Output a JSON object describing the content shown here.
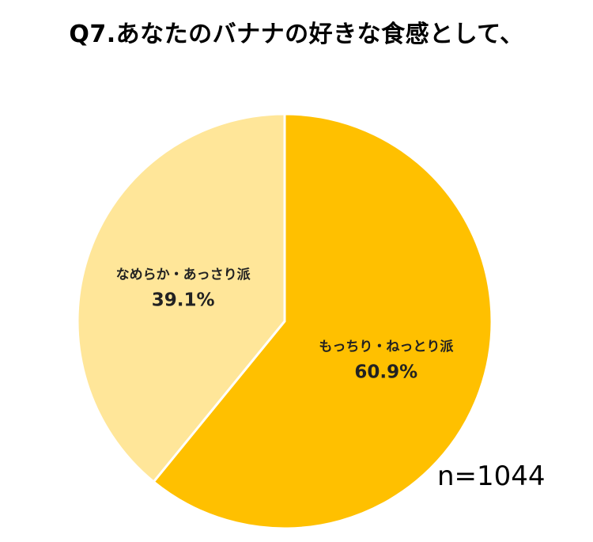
{
  "title": "Q7.あなたのバナナの好きな食感として、",
  "sample_size": "n=1044",
  "chart_data": {
    "type": "pie",
    "title": "Q7.あなたのバナナの好きな食感として、",
    "slices": [
      {
        "label": "もっちり・ねっとり派",
        "value": 60.9,
        "value_text": "60.9%",
        "color": "#FFC000"
      },
      {
        "label": "なめらか・あっさり派",
        "value": 39.1,
        "value_text": "39.1%",
        "color": "#FFE699"
      }
    ],
    "start": "12 o'clock",
    "direction": "clockwise",
    "legend": "none"
  }
}
